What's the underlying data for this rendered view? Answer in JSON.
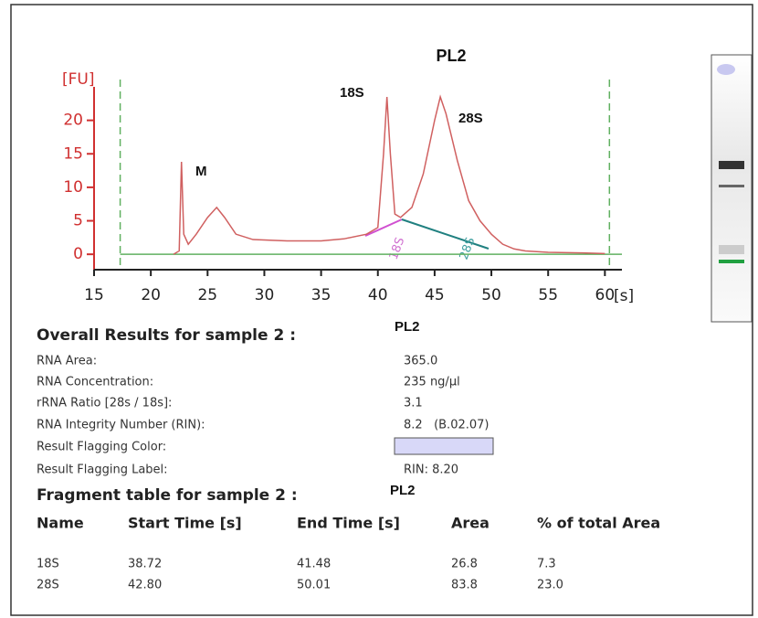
{
  "chart_data": {
    "type": "line",
    "title": "PL2",
    "y_label": "[FU]",
    "x_label": "[s]",
    "x": [
      22.0,
      22.5,
      22.7,
      22.9,
      23.3,
      24,
      25,
      25.8,
      26.5,
      27.5,
      29,
      32,
      35,
      37,
      39,
      40,
      40.5,
      40.8,
      41.1,
      41.5,
      42,
      43,
      44,
      45,
      45.5,
      46,
      47,
      48,
      49,
      50,
      51,
      52,
      53,
      55,
      58,
      60
    ],
    "values": [
      0,
      0.5,
      13.8,
      3,
      1.5,
      3,
      5.5,
      7,
      5.5,
      3,
      2.2,
      2,
      2,
      2.3,
      3,
      4,
      15,
      23.5,
      15,
      6,
      5.5,
      7,
      12,
      20,
      23.5,
      21,
      14,
      8,
      5,
      3,
      1.5,
      0.8,
      0.5,
      0.3,
      0.2,
      0.1
    ],
    "color": "#d06060",
    "axis_color": "#d03030",
    "baseline_color": "#60b060",
    "xlim": [
      15,
      61.5
    ],
    "ylim": [
      -2.3,
      25
    ],
    "xticks": [
      15,
      20,
      25,
      30,
      35,
      40,
      45,
      50,
      55,
      60
    ],
    "yticks": [
      0,
      5,
      10,
      15,
      20
    ],
    "gates": [
      17.3,
      60.4
    ],
    "annotations": [
      "M",
      "18S",
      "28S"
    ],
    "region_labels": [
      "18S",
      "28S"
    ]
  },
  "results": {
    "title": "Overall Results for sample 2 :",
    "sample": "PL2",
    "rows": [
      [
        "RNA Area:",
        "365.0"
      ],
      [
        "RNA Concentration:",
        "235 ng/µl"
      ],
      [
        "rRNA Ratio [28s / 18s]:",
        "3.1"
      ],
      [
        "RNA Integrity Number (RIN):",
        "8.2   (B.02.07)"
      ],
      [
        "Result Flagging Color:",
        ""
      ],
      [
        "Result Flagging Label:",
        "RIN: 8.20"
      ]
    ],
    "flag_color": "#d8d8f8"
  },
  "fragment_table": {
    "title": "Fragment table for sample 2 :",
    "sample": "PL2",
    "columns": [
      "Name",
      "Start Time [s]",
      "End Time [s]",
      "Area",
      "% of total Area"
    ],
    "rows": [
      [
        "18S",
        "38.72",
        "41.48",
        "26.8",
        "7.3"
      ],
      [
        "28S",
        "42.80",
        "50.01",
        "83.8",
        "23.0"
      ]
    ]
  }
}
